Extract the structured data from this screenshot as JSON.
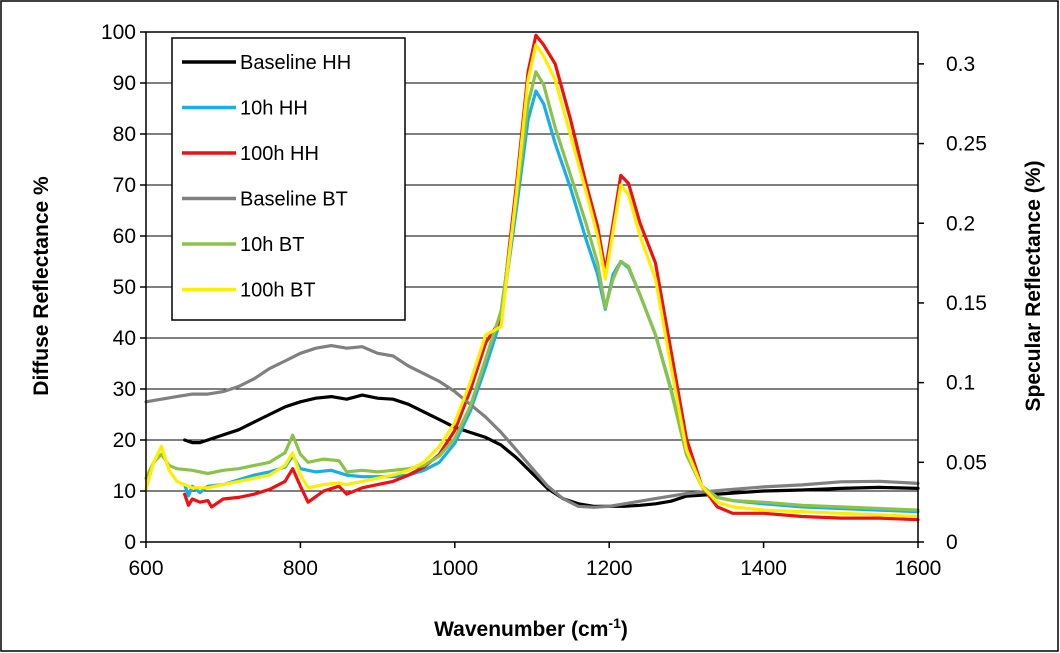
{
  "chart_data": {
    "type": "line",
    "title": "",
    "xlabel": "Wavenumber (cm",
    "xlabel_sup": "-1",
    "xlabel_tail": ")",
    "ylabel": "Diffuse Reflectance %",
    "y2label": "Specular Reflectance (%)",
    "xlim": [
      600,
      1600
    ],
    "ylim": [
      0,
      100
    ],
    "y2lim": [
      0,
      0.32
    ],
    "xticks": [
      "600",
      "800",
      "1000",
      "1200",
      "1400",
      "1600"
    ],
    "yticks": [
      "0",
      "10",
      "20",
      "30",
      "40",
      "50",
      "60",
      "70",
      "80",
      "90",
      "100"
    ],
    "y2ticks": [
      "0",
      "0.05",
      "0.1",
      "0.15",
      "0.2",
      "0.25",
      "0.3"
    ],
    "grid": "horizontal",
    "legend_position": "top-left",
    "series": [
      {
        "name": "Baseline HH",
        "color": "#000000",
        "axis": "left",
        "x": [
          650,
          660,
          670,
          680,
          700,
          720,
          740,
          760,
          780,
          800,
          820,
          840,
          860,
          880,
          900,
          920,
          940,
          960,
          980,
          1000,
          1020,
          1040,
          1060,
          1080,
          1100,
          1120,
          1140,
          1160,
          1180,
          1200,
          1220,
          1240,
          1260,
          1280,
          1300,
          1350,
          1400,
          1450,
          1500,
          1550,
          1600
        ],
        "y": [
          20,
          19.5,
          19.5,
          20,
          21,
          22,
          23.5,
          25,
          26.5,
          27.5,
          28.2,
          28.5,
          28,
          28.8,
          28.2,
          28,
          27,
          25.5,
          24,
          22.5,
          21.5,
          20.5,
          19,
          16.5,
          13.5,
          10.5,
          8.5,
          7.5,
          7,
          7,
          7,
          7.2,
          7.5,
          8,
          9,
          9.5,
          10,
          10.2,
          10.5,
          10.7,
          10.5
        ]
      },
      {
        "name": "10h HH",
        "color": "#1aaee8",
        "axis": "right",
        "x": [
          650,
          655,
          660,
          670,
          680,
          700,
          720,
          740,
          760,
          780,
          790,
          800,
          820,
          840,
          860,
          880,
          900,
          920,
          940,
          960,
          980,
          1000,
          1020,
          1040,
          1060,
          1080,
          1095,
          1105,
          1115,
          1130,
          1150,
          1170,
          1185,
          1195,
          1205,
          1215,
          1225,
          1240,
          1260,
          1280,
          1300,
          1320,
          1340,
          1360,
          1400,
          1450,
          1500,
          1550,
          1600
        ],
        "y": [
          0.036,
          0.029,
          0.035,
          0.031,
          0.035,
          0.036,
          0.039,
          0.042,
          0.044,
          0.047,
          0.054,
          0.046,
          0.044,
          0.045,
          0.042,
          0.041,
          0.041,
          0.041,
          0.042,
          0.045,
          0.05,
          0.062,
          0.082,
          0.11,
          0.14,
          0.21,
          0.265,
          0.283,
          0.275,
          0.25,
          0.222,
          0.19,
          0.168,
          0.146,
          0.168,
          0.176,
          0.172,
          0.155,
          0.13,
          0.096,
          0.055,
          0.035,
          0.028,
          0.026,
          0.024,
          0.022,
          0.021,
          0.02,
          0.019
        ]
      },
      {
        "name": "100h HH",
        "color": "#ee1111",
        "axis": "right",
        "x": [
          650,
          655,
          660,
          670,
          680,
          685,
          700,
          720,
          740,
          760,
          780,
          790,
          800,
          810,
          830,
          850,
          860,
          880,
          900,
          920,
          940,
          960,
          980,
          1000,
          1020,
          1040,
          1060,
          1080,
          1095,
          1105,
          1115,
          1130,
          1150,
          1170,
          1185,
          1195,
          1205,
          1215,
          1225,
          1240,
          1260,
          1280,
          1300,
          1320,
          1340,
          1360,
          1400,
          1450,
          1500,
          1550,
          1600
        ],
        "y": [
          0.03,
          0.023,
          0.027,
          0.025,
          0.026,
          0.022,
          0.027,
          0.028,
          0.03,
          0.033,
          0.038,
          0.046,
          0.035,
          0.025,
          0.032,
          0.035,
          0.03,
          0.034,
          0.036,
          0.038,
          0.042,
          0.047,
          0.055,
          0.07,
          0.095,
          0.125,
          0.14,
          0.225,
          0.295,
          0.318,
          0.312,
          0.3,
          0.265,
          0.225,
          0.198,
          0.17,
          0.2,
          0.23,
          0.225,
          0.2,
          0.175,
          0.12,
          0.065,
          0.035,
          0.022,
          0.018,
          0.018,
          0.016,
          0.015,
          0.015,
          0.014
        ]
      },
      {
        "name": "Baseline BT",
        "color": "#808080",
        "axis": "left",
        "x": [
          600,
          620,
          640,
          660,
          680,
          700,
          720,
          740,
          760,
          780,
          800,
          820,
          840,
          860,
          880,
          900,
          920,
          940,
          960,
          980,
          1000,
          1020,
          1040,
          1060,
          1080,
          1100,
          1120,
          1140,
          1160,
          1180,
          1200,
          1220,
          1240,
          1260,
          1280,
          1300,
          1350,
          1400,
          1450,
          1500,
          1550,
          1600
        ],
        "y": [
          27.5,
          28,
          28.5,
          29,
          29,
          29.5,
          30.5,
          32,
          34,
          35.5,
          37,
          38,
          38.5,
          38,
          38.3,
          37,
          36.5,
          34.5,
          33,
          31.5,
          29.5,
          27,
          24.5,
          21.5,
          18,
          14.5,
          11,
          8.5,
          7,
          6.8,
          7,
          7.5,
          8,
          8.5,
          9,
          9.5,
          10.2,
          10.8,
          11.2,
          11.8,
          11.9,
          11.5
        ]
      },
      {
        "name": "10h BT",
        "color": "#8bc34a",
        "axis": "right",
        "x": [
          600,
          610,
          620,
          630,
          640,
          660,
          680,
          700,
          720,
          740,
          760,
          780,
          790,
          800,
          810,
          830,
          850,
          860,
          880,
          900,
          920,
          940,
          960,
          980,
          1000,
          1020,
          1040,
          1060,
          1080,
          1095,
          1105,
          1115,
          1130,
          1150,
          1170,
          1185,
          1195,
          1205,
          1215,
          1225,
          1240,
          1260,
          1280,
          1300,
          1320,
          1340,
          1360,
          1400,
          1450,
          1500,
          1550,
          1600
        ],
        "y": [
          0.04,
          0.05,
          0.055,
          0.048,
          0.046,
          0.045,
          0.043,
          0.045,
          0.046,
          0.048,
          0.05,
          0.056,
          0.067,
          0.055,
          0.05,
          0.052,
          0.051,
          0.044,
          0.045,
          0.044,
          0.045,
          0.046,
          0.048,
          0.054,
          0.065,
          0.085,
          0.115,
          0.145,
          0.215,
          0.275,
          0.295,
          0.287,
          0.26,
          0.23,
          0.2,
          0.175,
          0.147,
          0.165,
          0.176,
          0.173,
          0.155,
          0.13,
          0.095,
          0.055,
          0.035,
          0.028,
          0.026,
          0.025,
          0.023,
          0.022,
          0.021,
          0.02
        ]
      },
      {
        "name": "100h BT",
        "color": "#ffee00",
        "axis": "right",
        "x": [
          600,
          610,
          620,
          630,
          640,
          660,
          680,
          700,
          720,
          740,
          760,
          780,
          790,
          800,
          810,
          830,
          850,
          860,
          880,
          900,
          920,
          940,
          960,
          980,
          1000,
          1020,
          1040,
          1060,
          1080,
          1095,
          1105,
          1115,
          1130,
          1150,
          1170,
          1185,
          1195,
          1205,
          1215,
          1225,
          1240,
          1260,
          1280,
          1300,
          1320,
          1340,
          1360,
          1400,
          1450,
          1500,
          1550,
          1600
        ],
        "y": [
          0.033,
          0.05,
          0.06,
          0.045,
          0.038,
          0.034,
          0.034,
          0.036,
          0.038,
          0.04,
          0.042,
          0.048,
          0.056,
          0.042,
          0.034,
          0.036,
          0.037,
          0.036,
          0.038,
          0.04,
          0.042,
          0.045,
          0.05,
          0.06,
          0.075,
          0.1,
          0.13,
          0.135,
          0.22,
          0.29,
          0.312,
          0.305,
          0.29,
          0.255,
          0.22,
          0.192,
          0.165,
          0.195,
          0.224,
          0.218,
          0.192,
          0.165,
          0.11,
          0.058,
          0.035,
          0.025,
          0.022,
          0.02,
          0.019,
          0.018,
          0.017,
          0.016
        ]
      }
    ]
  }
}
